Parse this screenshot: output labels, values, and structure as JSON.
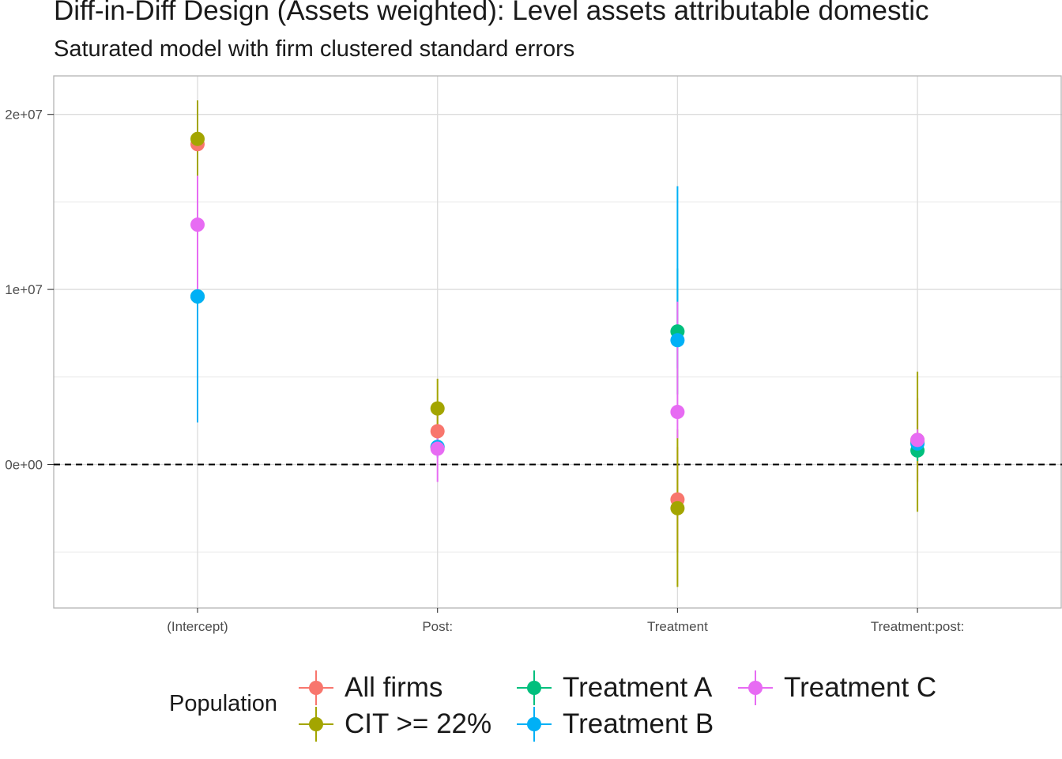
{
  "chart_data": {
    "type": "scatter",
    "title": "Diff-in-Diff Design (Assets weighted): Level assets attributable domestic",
    "subtitle": "Saturated model with firm clustered standard errors",
    "categories": [
      "(Intercept)",
      "Post:",
      "Treatment",
      "Treatment:post:"
    ],
    "y_ticks": [
      0,
      10000000,
      20000000
    ],
    "y_tick_labels": [
      "0e+00",
      "1e+07",
      "2e+07"
    ],
    "ylim": [
      -8200000,
      22200000
    ],
    "reference_line": 0,
    "grid": true,
    "legend": {
      "title": "Population",
      "position": "bottom"
    },
    "series": [
      {
        "name": "All firms",
        "color": "#F8766D",
        "values": [
          18300000,
          1900000,
          -2000000,
          1400000
        ],
        "lower": [
          16500000,
          700000,
          -5000000,
          -1000000
        ],
        "upper": [
          20100000,
          3100000,
          1000000,
          3800000
        ]
      },
      {
        "name": "CIT >= 22%",
        "color": "#A3A500",
        "values": [
          18600000,
          3200000,
          -2500000,
          1300000
        ],
        "lower": [
          16500000,
          1500000,
          -7000000,
          -2700000
        ],
        "upper": [
          20800000,
          4900000,
          2000000,
          5300000
        ]
      },
      {
        "name": "Treatment A",
        "color": "#00BF7D",
        "values": [
          9600000,
          1000000,
          7600000,
          800000
        ],
        "lower": [
          8000000,
          600000,
          4000000,
          200000
        ],
        "upper": [
          11200000,
          1400000,
          11200000,
          1400000
        ]
      },
      {
        "name": "Treatment B",
        "color": "#00B0F6",
        "values": [
          9600000,
          1000000,
          7100000,
          1200000
        ],
        "lower": [
          2400000,
          400000,
          5500000,
          600000
        ],
        "upper": [
          11000000,
          1600000,
          15900000,
          1800000
        ]
      },
      {
        "name": "Treatment C",
        "color": "#E76BF3",
        "values": [
          13700000,
          900000,
          3000000,
          1400000
        ],
        "lower": [
          9500000,
          -1000000,
          1500000,
          800000
        ],
        "upper": [
          16500000,
          2000000,
          9300000,
          2000000
        ]
      }
    ]
  }
}
